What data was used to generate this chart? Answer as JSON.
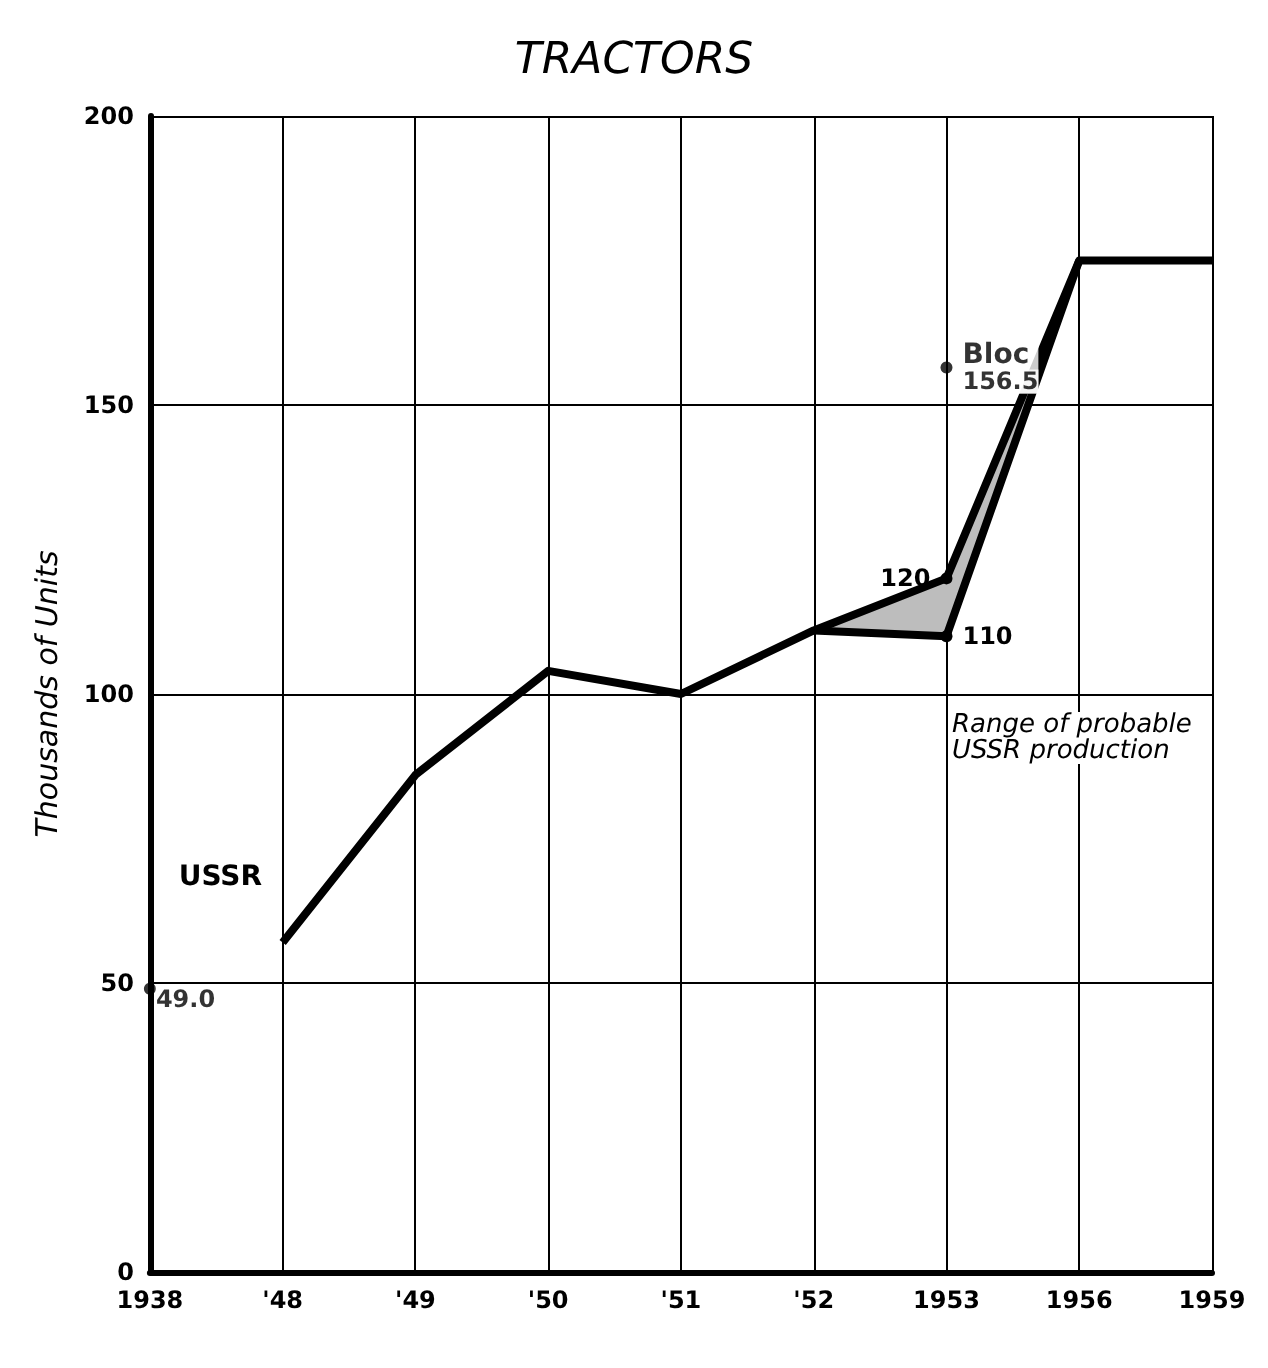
{
  "chart_data": {
    "type": "line",
    "title": "TRACTORS",
    "ylabel": "Thousands of Units",
    "categories": [
      "1938",
      "'48",
      "'49",
      "'50",
      "'51",
      "'52",
      "1953",
      "1956",
      "1959"
    ],
    "series": [
      {
        "name": "USSR",
        "color": "#000000",
        "values": [
          null,
          57,
          86,
          104,
          100,
          111,
          120,
          175,
          175
        ],
        "value_labels": [
          null,
          null,
          null,
          null,
          null,
          null,
          "120",
          null,
          null
        ],
        "lower": [
          null,
          null,
          null,
          null,
          null,
          111,
          110,
          175,
          null
        ],
        "upper": [
          null,
          null,
          null,
          null,
          null,
          111,
          120,
          175,
          null
        ]
      },
      {
        "color": "#000000",
        "values": [
          null,
          null,
          null,
          null,
          null,
          111,
          110,
          175,
          null
        ],
        "value_labels": [
          null,
          null,
          null,
          null,
          null,
          null,
          "110",
          null,
          null
        ]
      },
      {
        "type": "scatter",
        "color": "#000000",
        "values": [
          49.0,
          null,
          null,
          null,
          null,
          null,
          null,
          null,
          null
        ],
        "value_labels": [
          "49.0",
          null,
          null,
          null,
          null,
          null,
          null,
          null,
          null
        ]
      },
      {
        "type": "scatter",
        "name": "Bloc",
        "color": "#000000",
        "values": [
          null,
          null,
          null,
          null,
          null,
          null,
          156.5,
          null,
          null
        ],
        "value_labels": [
          null,
          null,
          null,
          null,
          null,
          null,
          "156.5",
          null,
          null
        ]
      }
    ],
    "annotations": [
      "Range of probable USSR production"
    ],
    "ylim": [
      0,
      200
    ],
    "yticks": [
      0,
      50,
      100,
      150,
      200
    ],
    "grid": true,
    "legend": false,
    "line_style": "solid"
  }
}
